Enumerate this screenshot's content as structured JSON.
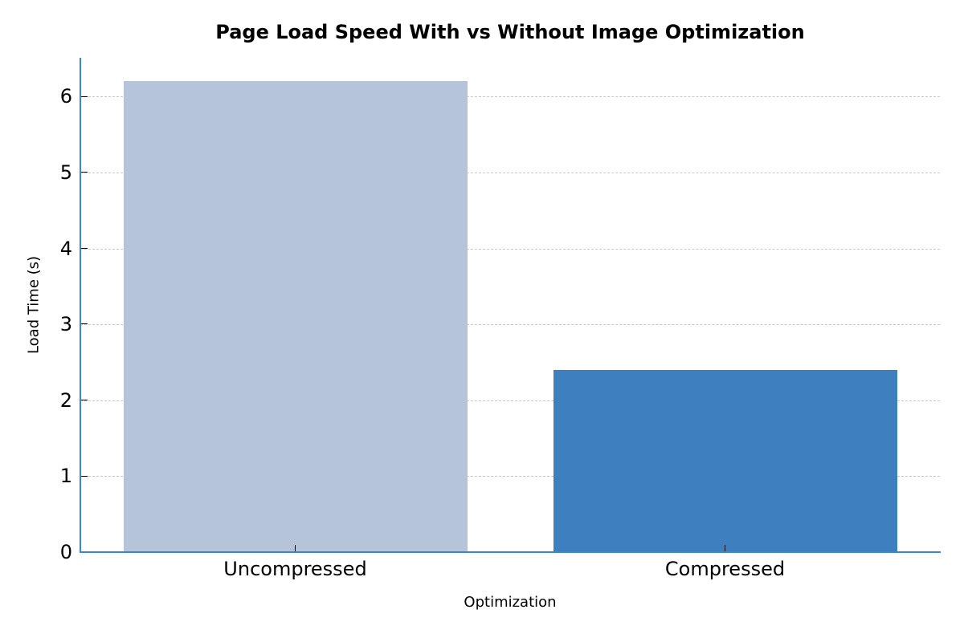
{
  "chart_data": {
    "type": "bar",
    "title": "Page Load Speed With vs Without Image Optimization",
    "xlabel": "Optimization",
    "ylabel": "Load Time (s)",
    "categories": [
      "Uncompressed",
      "Compressed"
    ],
    "values": [
      6.2,
      2.4
    ],
    "colors": [
      "#b5c4d8",
      "#3e7fc0"
    ],
    "ylim": [
      0,
      6.51
    ],
    "yticks": [
      0,
      1,
      2,
      3,
      4,
      5,
      6
    ],
    "grid": {
      "axis": "y",
      "style": "dashed",
      "color": "#c8c8c8"
    },
    "legend": null,
    "spine_color": "#3a86d0"
  }
}
